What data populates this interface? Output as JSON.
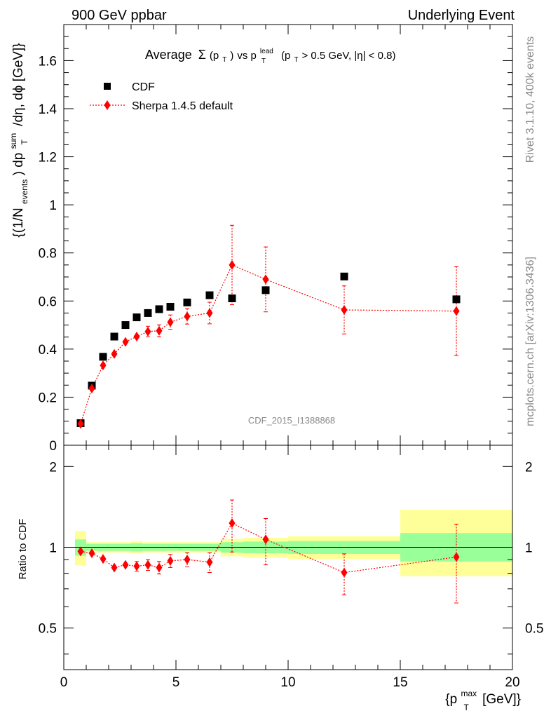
{
  "header": {
    "left": "900 GeV ppbar",
    "right": "Underlying Event"
  },
  "title": {
    "prefix": "Average",
    "sigma": "Σ",
    "sigma_arg": "(p",
    "sigma_arg_sub": "T",
    "sigma_arg_close": ")",
    "vs": " vs p",
    "vs_sup": "lead",
    "vs_sub": "T",
    "cut": "(p",
    "cut_sub": "T",
    "cut_rest": " > 0.5 GeV, |η| < 0.8)"
  },
  "side_labels": {
    "rivet": "Rivet 3.1.10,  400k events",
    "mcplots": "mcplots.cern.ch [arXiv:1306.3436]"
  },
  "watermark": "CDF_2015_I1388868",
  "ylabel_main": {
    "p1": "{(1/N",
    "sub1": "events",
    "p2": ") dp",
    "sup2": "sum",
    "sub2": "T",
    "p3": "/dη, dϕ [GeV]}"
  },
  "ylabel_ratio": "Ratio to CDF",
  "xlabel": {
    "p1": "{p",
    "sup": "max",
    "sub": "T",
    "p2": " [GeV]}"
  },
  "legend": {
    "position": "top-left",
    "entries": [
      "CDF",
      "Sherpa 1.4.5 default"
    ]
  },
  "colors": {
    "data": "#000000",
    "mc": "#ff0000",
    "band_inner": "#99ff99",
    "band_outer": "#ffff99"
  },
  "chart_data": [
    {
      "type": "scatter",
      "panel": "main",
      "xlim": [
        0,
        20
      ],
      "ylim": [
        0,
        1.75
      ],
      "yticks": [
        0,
        0.2,
        0.4,
        0.6,
        0.8,
        1,
        1.2,
        1.4,
        1.6
      ],
      "ytick_labels": [
        "0",
        "0.2",
        "0.4",
        "0.6",
        "0.8",
        "1",
        "1.2",
        "1.4",
        "1.6"
      ],
      "series": [
        {
          "name": "CDF",
          "marker": "square",
          "x": [
            0.75,
            1.25,
            1.75,
            2.25,
            2.75,
            3.25,
            3.75,
            4.25,
            4.75,
            5.5,
            6.5,
            7.5,
            9.0,
            12.5,
            17.5
          ],
          "y": [
            0.092,
            0.248,
            0.368,
            0.452,
            0.5,
            0.532,
            0.55,
            0.566,
            0.576,
            0.594,
            0.624,
            0.611,
            0.645,
            0.702,
            0.607
          ]
        },
        {
          "name": "Sherpa 1.4.5 default",
          "marker": "diamond",
          "line": "dotted",
          "x": [
            0.75,
            1.25,
            1.75,
            2.25,
            2.75,
            3.25,
            3.75,
            4.25,
            4.75,
            5.5,
            6.5,
            7.5,
            9.0,
            12.5,
            17.5
          ],
          "y": [
            0.089,
            0.236,
            0.332,
            0.38,
            0.43,
            0.452,
            0.473,
            0.476,
            0.512,
            0.536,
            0.55,
            0.75,
            0.69,
            0.563,
            0.558
          ],
          "yerr": [
            0.003,
            0.006,
            0.01,
            0.012,
            0.015,
            0.018,
            0.022,
            0.025,
            0.03,
            0.032,
            0.045,
            0.165,
            0.135,
            0.1,
            0.185
          ]
        }
      ]
    },
    {
      "type": "scatter",
      "panel": "ratio",
      "xlim": [
        0,
        20
      ],
      "ylim": [
        0.35,
        2.4
      ],
      "yscale": "log",
      "yticks": [
        0.5,
        1,
        2
      ],
      "ytick_labels": [
        "0.5",
        "1",
        "2"
      ],
      "xticks": [
        0,
        5,
        10,
        15,
        20
      ],
      "xtick_labels": [
        "0",
        "5",
        "10",
        "15",
        "20"
      ],
      "reference_line": 1,
      "bands": {
        "edges": [
          0.5,
          1.0,
          1.5,
          2.0,
          2.5,
          3.0,
          3.5,
          4.0,
          4.5,
          5.0,
          6.0,
          7.0,
          8.0,
          10.0,
          15.0,
          20.0
        ],
        "inner_lo": [
          0.93,
          0.97,
          0.97,
          0.97,
          0.97,
          0.965,
          0.97,
          0.97,
          0.97,
          0.97,
          0.97,
          0.955,
          0.95,
          0.945,
          0.885
        ],
        "inner_hi": [
          1.07,
          1.03,
          1.03,
          1.03,
          1.03,
          1.035,
          1.03,
          1.03,
          1.03,
          1.03,
          1.03,
          1.045,
          1.05,
          1.055,
          1.13
        ],
        "outer_lo": [
          0.855,
          0.955,
          0.955,
          0.955,
          0.955,
          0.945,
          0.955,
          0.955,
          0.955,
          0.955,
          0.955,
          0.925,
          0.915,
          0.905,
          0.78
        ],
        "outer_hi": [
          1.15,
          1.045,
          1.045,
          1.045,
          1.045,
          1.055,
          1.045,
          1.045,
          1.045,
          1.045,
          1.045,
          1.075,
          1.085,
          1.1,
          1.38
        ]
      },
      "series": [
        {
          "name": "Sherpa 1.4.5 default",
          "marker": "diamond",
          "x": [
            0.75,
            1.25,
            1.75,
            2.25,
            2.75,
            3.25,
            3.75,
            4.25,
            4.75,
            5.5,
            6.5,
            7.5,
            9.0,
            12.5,
            17.5
          ],
          "y": [
            0.965,
            0.95,
            0.905,
            0.84,
            0.86,
            0.85,
            0.86,
            0.84,
            0.89,
            0.9,
            0.88,
            1.23,
            1.07,
            0.805,
            0.92
          ],
          "yerr": [
            0.01,
            0.015,
            0.02,
            0.025,
            0.03,
            0.035,
            0.04,
            0.045,
            0.05,
            0.055,
            0.075,
            0.27,
            0.21,
            0.14,
            0.3
          ]
        }
      ]
    }
  ]
}
